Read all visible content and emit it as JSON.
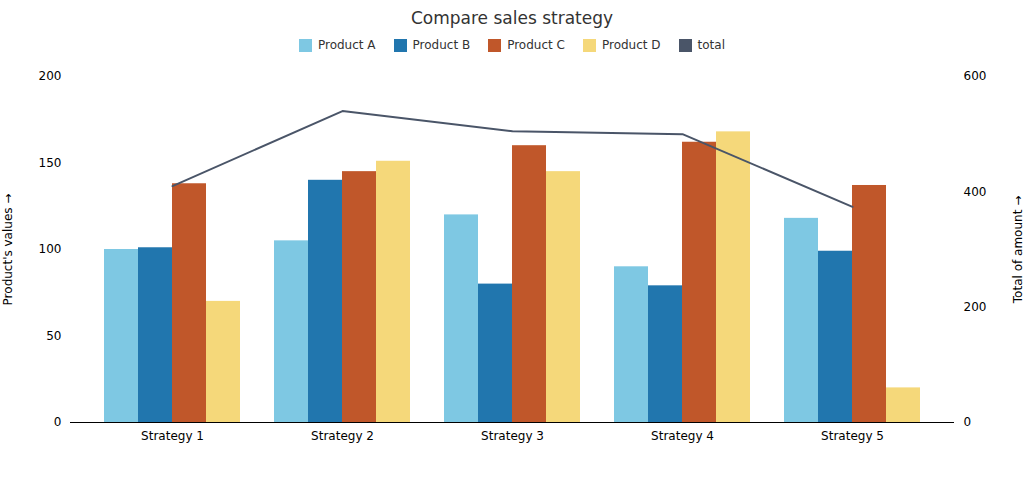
{
  "chart_data": {
    "type": "bar",
    "title": "Compare sales strategy",
    "ylabel": "Product's values",
    "y2label": "Total of amount",
    "categories": [
      "Strategy 1",
      "Strategy 2",
      "Strategy 3",
      "Strategy 4",
      "Strategy 5"
    ],
    "series": [
      {
        "name": "Product A",
        "color": "#7EC8E3",
        "values": [
          100,
          105,
          120,
          90,
          118
        ]
      },
      {
        "name": "Product B",
        "color": "#2176AE",
        "values": [
          101,
          140,
          80,
          79,
          99
        ]
      },
      {
        "name": "Product C",
        "color": "#C0572A",
        "values": [
          138,
          145,
          160,
          162,
          137
        ]
      },
      {
        "name": "Product D",
        "color": "#F5D87A",
        "values": [
          70,
          151,
          145,
          168,
          20
        ]
      },
      {
        "name": "total",
        "type": "line",
        "axis": "y2",
        "color": "#4A5568",
        "values": [
          410,
          540,
          505,
          500,
          374
        ]
      }
    ],
    "ylim": [
      0,
      200
    ],
    "yticks": [
      0,
      50,
      100,
      150,
      200
    ],
    "y2lim": [
      0,
      600
    ],
    "y2ticks": [
      0,
      200,
      400,
      600
    ],
    "legend": "top",
    "grid": false
  }
}
